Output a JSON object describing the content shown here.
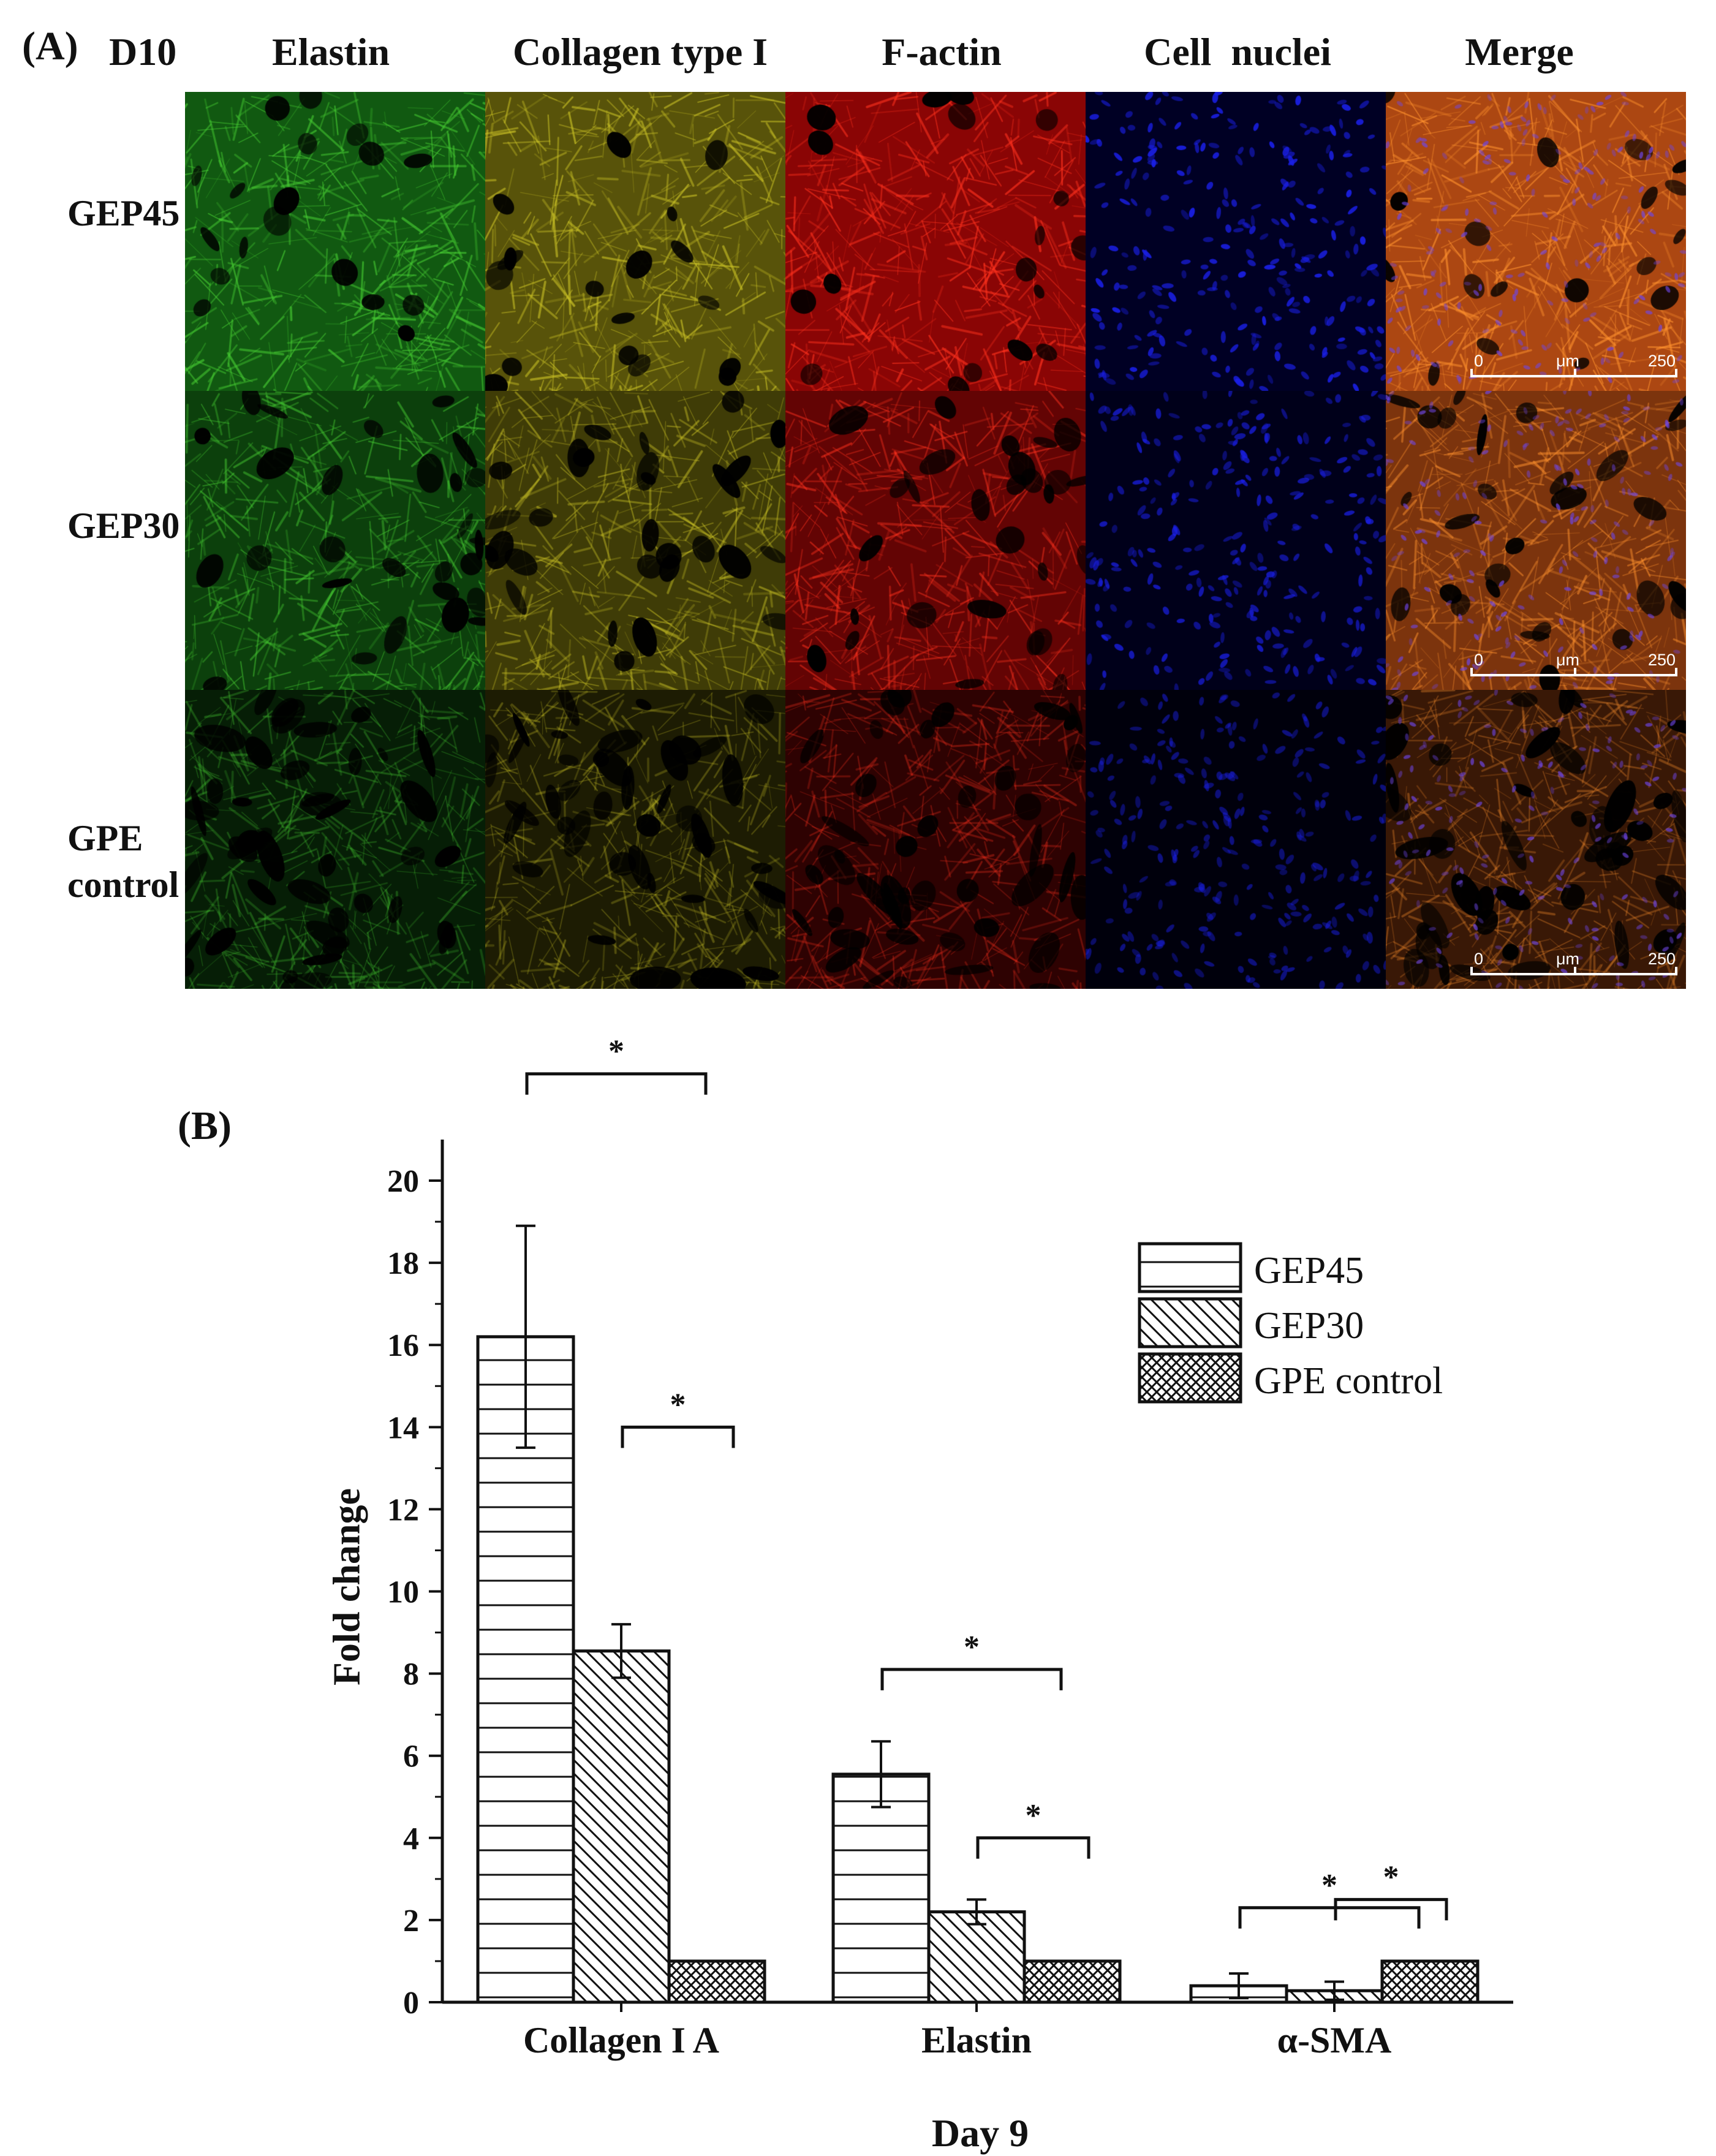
{
  "panel_a": {
    "label": "(A)",
    "timepoint": "D10",
    "columns": [
      {
        "label": "Elastin",
        "color": "#1fa51f",
        "pattern": "fibrous"
      },
      {
        "label": "Collagen type I",
        "color": "#a29a12",
        "pattern": "fibrous"
      },
      {
        "label": "F-actin",
        "color": "#ff0a0a",
        "pattern": "fibrous"
      },
      {
        "label": "Cell  nuclei",
        "color": "#1a1fe6",
        "pattern": "nuclei"
      },
      {
        "label": "Merge",
        "color": "#ff6a1a",
        "pattern": "merge"
      }
    ],
    "rows": [
      {
        "label_lines": [
          "GEP45"
        ],
        "intensity": 0.9
      },
      {
        "label_lines": [
          "GEP30"
        ],
        "intensity": 0.65
      },
      {
        "label_lines": [
          "GPE",
          "control"
        ],
        "intensity": 0.3
      }
    ],
    "scale_bar": {
      "start": "0",
      "unit": "μm",
      "end": "250"
    }
  },
  "chart_data": {
    "panel_label": "(B)",
    "type": "bar",
    "title": "",
    "xlabel": "Day 9",
    "ylabel": "Fold change",
    "ylim": [
      0,
      21
    ],
    "yticks": [
      0,
      2,
      4,
      6,
      8,
      10,
      12,
      14,
      16,
      18,
      20
    ],
    "categories": [
      "Collagen I A",
      "Elastin",
      "α-SMA"
    ],
    "series": [
      {
        "name": "GEP45",
        "pattern": "horizontal-lines",
        "values": [
          16.2,
          5.55,
          0.4
        ],
        "errors": [
          2.7,
          0.8,
          0.3
        ]
      },
      {
        "name": "GEP30",
        "pattern": "diagonal-lines",
        "values": [
          8.55,
          2.2,
          0.28
        ],
        "errors": [
          0.65,
          0.3,
          0.22
        ]
      },
      {
        "name": "GPE control",
        "pattern": "crosshatch",
        "values": [
          1.0,
          1.0,
          1.0
        ],
        "errors": [
          0,
          0,
          0
        ]
      }
    ],
    "significance": [
      {
        "category": 0,
        "from": 0,
        "to": 2,
        "label": "*"
      },
      {
        "category": 0,
        "from": 1,
        "to": 2,
        "label": "*"
      },
      {
        "category": 1,
        "from": 0,
        "to": 2,
        "label": "*"
      },
      {
        "category": 1,
        "from": 1,
        "to": 2,
        "label": "*"
      },
      {
        "category": 2,
        "from": 0,
        "to": 2,
        "label": "*"
      },
      {
        "category": 2,
        "from": 1,
        "to": 2,
        "label": "*"
      }
    ],
    "legend_position": "top-right",
    "grid": false
  }
}
